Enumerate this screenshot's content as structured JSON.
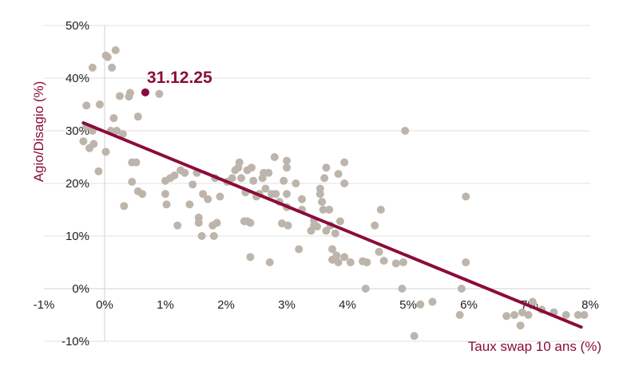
{
  "chart_data": {
    "type": "scatter",
    "xlabel": "Taux swap 10 ans (%)",
    "ylabel": "Agio/Disagio (%)",
    "xlim": [
      -1,
      8
    ],
    "ylim": [
      -10,
      50
    ],
    "x_ticks": [
      -1,
      0,
      1,
      2,
      3,
      4,
      5,
      6,
      7,
      8
    ],
    "y_ticks": [
      -10,
      0,
      10,
      20,
      30,
      40,
      50
    ],
    "x_tick_labels": [
      "-1%",
      "0%",
      "1%",
      "2%",
      "3%",
      "4%",
      "5%",
      "6%",
      "7%",
      "8%"
    ],
    "y_tick_labels": [
      "-10%",
      "0%",
      "10%",
      "20%",
      "30%",
      "40%",
      "50%"
    ],
    "grid": "horizontal",
    "colors": {
      "points": "#bdb5ab",
      "accent": "#8b0c3b",
      "grid": "#e0e0e0",
      "axis": "#d0d0d0"
    },
    "trendline": {
      "x": [
        -0.35,
        7.85
      ],
      "y": [
        31.5,
        -7.3
      ]
    },
    "highlight": {
      "label": "31.12.25",
      "x": 0.67,
      "y": 37.3
    },
    "points": [
      [
        -0.3,
        30.8
      ],
      [
        -0.35,
        28
      ],
      [
        -0.3,
        34.8
      ],
      [
        -0.25,
        26.7
      ],
      [
        -0.2,
        42
      ],
      [
        -0.2,
        30
      ],
      [
        -0.18,
        27.5
      ],
      [
        -0.1,
        22.3
      ],
      [
        -0.08,
        35
      ],
      [
        0.02,
        44.3
      ],
      [
        0.05,
        44
      ],
      [
        0.02,
        26
      ],
      [
        0.1,
        30
      ],
      [
        0.12,
        42
      ],
      [
        0.15,
        32.4
      ],
      [
        0.18,
        45.3
      ],
      [
        0.2,
        30
      ],
      [
        0.25,
        36.6
      ],
      [
        0.3,
        29.4
      ],
      [
        0.32,
        15.7
      ],
      [
        0.4,
        36.5
      ],
      [
        0.42,
        37.2
      ],
      [
        0.45,
        24
      ],
      [
        0.45,
        20.3
      ],
      [
        0.52,
        24
      ],
      [
        0.55,
        32.7
      ],
      [
        0.55,
        18.5
      ],
      [
        0.62,
        18
      ],
      [
        0.9,
        37
      ],
      [
        1.0,
        18
      ],
      [
        1.0,
        20.5
      ],
      [
        1.02,
        16
      ],
      [
        1.08,
        21
      ],
      [
        1.15,
        21.5
      ],
      [
        1.2,
        12
      ],
      [
        1.25,
        22.5
      ],
      [
        1.32,
        22
      ],
      [
        1.4,
        16
      ],
      [
        1.45,
        19.8
      ],
      [
        1.52,
        22
      ],
      [
        1.55,
        12.5
      ],
      [
        1.55,
        13.5
      ],
      [
        1.6,
        10
      ],
      [
        1.62,
        18
      ],
      [
        1.7,
        17
      ],
      [
        1.78,
        12
      ],
      [
        1.8,
        10
      ],
      [
        1.82,
        21
      ],
      [
        1.85,
        12.5
      ],
      [
        1.9,
        17.5
      ],
      [
        2.02,
        20.3
      ],
      [
        2.1,
        21
      ],
      [
        2.15,
        22.5
      ],
      [
        2.2,
        23
      ],
      [
        2.22,
        24
      ],
      [
        2.25,
        21
      ],
      [
        2.3,
        12.8
      ],
      [
        2.32,
        18.3
      ],
      [
        2.35,
        22.5
      ],
      [
        2.35,
        12.8
      ],
      [
        2.4,
        6
      ],
      [
        2.4,
        12.5
      ],
      [
        2.42,
        23
      ],
      [
        2.45,
        20.5
      ],
      [
        2.5,
        17.5
      ],
      [
        2.55,
        18
      ],
      [
        2.6,
        21
      ],
      [
        2.62,
        22
      ],
      [
        2.65,
        19
      ],
      [
        2.7,
        22
      ],
      [
        2.72,
        5
      ],
      [
        2.75,
        18
      ],
      [
        2.8,
        25
      ],
      [
        2.82,
        18
      ],
      [
        2.88,
        16.5
      ],
      [
        2.92,
        12.4
      ],
      [
        2.95,
        20.5
      ],
      [
        3.0,
        23
      ],
      [
        3.0,
        24.3
      ],
      [
        3.0,
        18
      ],
      [
        3.0,
        15.5
      ],
      [
        3.02,
        12
      ],
      [
        3.15,
        20
      ],
      [
        3.2,
        7.5
      ],
      [
        3.25,
        17
      ],
      [
        3.25,
        15
      ],
      [
        3.4,
        11
      ],
      [
        3.45,
        12
      ],
      [
        3.45,
        13
      ],
      [
        3.5,
        11.8
      ],
      [
        3.55,
        18
      ],
      [
        3.55,
        19
      ],
      [
        3.58,
        16.5
      ],
      [
        3.6,
        15
      ],
      [
        3.62,
        21
      ],
      [
        3.65,
        23
      ],
      [
        3.65,
        11
      ],
      [
        3.7,
        15
      ],
      [
        3.72,
        12
      ],
      [
        3.75,
        5.5
      ],
      [
        3.75,
        7.5
      ],
      [
        3.8,
        10.5
      ],
      [
        3.82,
        6.3
      ],
      [
        3.85,
        5
      ],
      [
        3.85,
        21.8
      ],
      [
        3.88,
        12.8
      ],
      [
        3.95,
        24
      ],
      [
        3.95,
        20
      ],
      [
        3.95,
        6
      ],
      [
        4.05,
        5
      ],
      [
        4.25,
        5.2
      ],
      [
        4.3,
        0
      ],
      [
        4.32,
        5
      ],
      [
        4.45,
        12
      ],
      [
        4.52,
        7
      ],
      [
        4.55,
        15
      ],
      [
        4.6,
        5.3
      ],
      [
        4.8,
        4.8
      ],
      [
        4.9,
        0
      ],
      [
        4.92,
        5
      ],
      [
        4.95,
        30
      ],
      [
        5.1,
        -9
      ],
      [
        5.2,
        -3
      ],
      [
        5.4,
        -2.5
      ],
      [
        5.85,
        -5
      ],
      [
        5.88,
        0
      ],
      [
        5.95,
        5
      ],
      [
        5.95,
        17.5
      ],
      [
        6.62,
        -5.2
      ],
      [
        6.75,
        -5
      ],
      [
        6.85,
        -7
      ],
      [
        6.88,
        -4.5
      ],
      [
        6.98,
        -5
      ],
      [
        7.05,
        -2.5
      ],
      [
        7.2,
        -4
      ],
      [
        7.4,
        -4.5
      ],
      [
        7.6,
        -5
      ],
      [
        7.8,
        -5
      ],
      [
        7.9,
        -5
      ]
    ]
  }
}
